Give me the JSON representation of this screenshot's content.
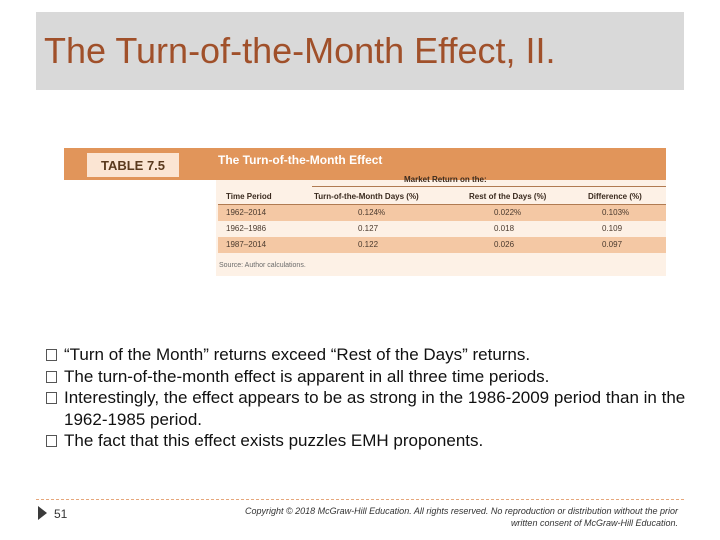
{
  "slide": {
    "title": "The Turn-of-the-Month Effect, II.",
    "page_number": "51",
    "copyright": "Copyright © 2018 McGraw-Hill Education. All rights reserved. No reproduction or distribution without the prior written consent of McGraw-Hill Education."
  },
  "table": {
    "label": "TABLE 7.5",
    "title": "The Turn-of-the-Month Effect",
    "spanning_header": "Market Return on the:",
    "columns": [
      "Time Period",
      "Turn-of-the-Month Days (%)",
      "Rest of the Days (%)",
      "Difference (%)"
    ],
    "rows": [
      [
        "1962–2014",
        "0.124%",
        "0.022%",
        "0.103%"
      ],
      [
        "1962–1986",
        "0.127",
        "0.018",
        "0.109"
      ],
      [
        "1987–2014",
        "0.122",
        "0.026",
        "0.097"
      ]
    ],
    "source": "Source: Author calculations.",
    "colors": {
      "header_band": "#e1955a",
      "row_shade": "#f4c8a4",
      "body": "#fdf1e6"
    }
  },
  "bullets": [
    "“Turn of the Month” returns exceed “Rest of the Days” returns.",
    "The turn-of-the-month effect is apparent in all three time periods.",
    "Interestingly, the effect appears to be as strong in the 1986-2009 period than in the 1962-1985 period.",
    "The fact that this effect exists puzzles EMH proponents."
  ],
  "colors": {
    "title": "#a0502a",
    "title_band": "#d9d9d9"
  }
}
